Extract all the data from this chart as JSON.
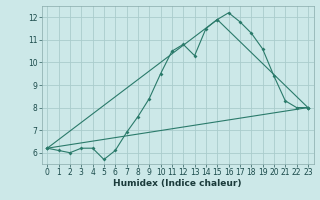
{
  "xlabel": "Humidex (Indice chaleur)",
  "ylabel": "",
  "background_color": "#cce8e8",
  "grid_color": "#aacccc",
  "line_color": "#2a7a6a",
  "xlim": [
    -0.5,
    23.5
  ],
  "ylim": [
    5.5,
    12.5
  ],
  "xticks": [
    0,
    1,
    2,
    3,
    4,
    5,
    6,
    7,
    8,
    9,
    10,
    11,
    12,
    13,
    14,
    15,
    16,
    17,
    18,
    19,
    20,
    21,
    22,
    23
  ],
  "yticks": [
    6,
    7,
    8,
    9,
    10,
    11,
    12
  ],
  "line1_x": [
    0,
    1,
    2,
    3,
    4,
    5,
    6,
    7,
    8,
    9,
    10,
    11,
    12,
    13,
    14,
    15,
    16,
    17,
    18,
    19,
    20,
    21,
    22,
    23
  ],
  "line1_y": [
    6.2,
    6.1,
    6.0,
    6.2,
    6.2,
    5.7,
    6.1,
    6.9,
    7.6,
    8.4,
    9.5,
    10.5,
    10.8,
    10.3,
    11.5,
    11.9,
    12.2,
    11.8,
    11.3,
    10.6,
    9.4,
    8.3,
    8.0,
    8.0
  ],
  "line2_x": [
    0,
    23
  ],
  "line2_y": [
    6.2,
    8.0
  ],
  "line3_x": [
    0,
    15,
    23
  ],
  "line3_y": [
    6.2,
    11.9,
    8.0
  ],
  "tick_fontsize": 5.5,
  "xlabel_fontsize": 6.5
}
